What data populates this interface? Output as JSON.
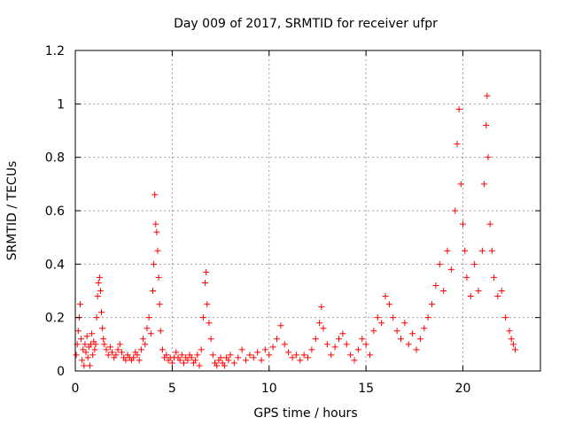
{
  "chart_data": {
    "type": "scatter",
    "title": "Day 009 of 2017, SRMTID for receiver ufpr",
    "xlabel": "GPS time / hours",
    "ylabel": "SRMTID / TECUs",
    "xlim": [
      0,
      24
    ],
    "ylim": [
      0,
      1.2
    ],
    "xticks": [
      0,
      5,
      10,
      15,
      20
    ],
    "yticks": [
      0,
      0.2,
      0.4,
      0.6,
      0.8,
      1,
      1.2
    ],
    "xtick_labels": [
      "0",
      "5",
      "10",
      "15",
      "20"
    ],
    "ytick_labels": [
      "0",
      "0.2",
      "0.4",
      "0.6",
      "0.8",
      "1",
      "1.2"
    ],
    "grid": true,
    "marker": "+",
    "color": "#ff0000",
    "series": [
      {
        "name": "SRMTID",
        "points": [
          [
            0.05,
            0.06
          ],
          [
            0.1,
            0.1
          ],
          [
            0.15,
            0.15
          ],
          [
            0.2,
            0.2
          ],
          [
            0.25,
            0.25
          ],
          [
            0.3,
            0.12
          ],
          [
            0.35,
            0.04
          ],
          [
            0.4,
            0.08
          ],
          [
            0.45,
            0.02
          ],
          [
            0.5,
            0.1
          ],
          [
            0.55,
            0.07
          ],
          [
            0.6,
            0.13
          ],
          [
            0.65,
            0.05
          ],
          [
            0.7,
            0.09
          ],
          [
            0.75,
            0.02
          ],
          [
            0.8,
            0.1
          ],
          [
            0.85,
            0.14
          ],
          [
            0.9,
            0.06
          ],
          [
            0.95,
            0.11
          ],
          [
            1.0,
            0.08
          ],
          [
            1.05,
            0.1
          ],
          [
            1.1,
            0.2
          ],
          [
            1.15,
            0.28
          ],
          [
            1.2,
            0.33
          ],
          [
            1.25,
            0.35
          ],
          [
            1.3,
            0.3
          ],
          [
            1.35,
            0.22
          ],
          [
            1.4,
            0.16
          ],
          [
            1.45,
            0.12
          ],
          [
            1.5,
            0.1
          ],
          [
            1.6,
            0.08
          ],
          [
            1.7,
            0.06
          ],
          [
            1.8,
            0.09
          ],
          [
            1.9,
            0.07
          ],
          [
            2.0,
            0.05
          ],
          [
            2.1,
            0.06
          ],
          [
            2.2,
            0.08
          ],
          [
            2.3,
            0.1
          ],
          [
            2.4,
            0.07
          ],
          [
            2.5,
            0.05
          ],
          [
            2.6,
            0.04
          ],
          [
            2.7,
            0.06
          ],
          [
            2.8,
            0.05
          ],
          [
            2.9,
            0.04
          ],
          [
            3.0,
            0.05
          ],
          [
            3.1,
            0.07
          ],
          [
            3.2,
            0.06
          ],
          [
            3.3,
            0.04
          ],
          [
            3.4,
            0.08
          ],
          [
            3.5,
            0.12
          ],
          [
            3.6,
            0.1
          ],
          [
            3.7,
            0.16
          ],
          [
            3.8,
            0.2
          ],
          [
            3.9,
            0.14
          ],
          [
            4.0,
            0.3
          ],
          [
            4.05,
            0.4
          ],
          [
            4.1,
            0.66
          ],
          [
            4.15,
            0.55
          ],
          [
            4.2,
            0.52
          ],
          [
            4.25,
            0.45
          ],
          [
            4.3,
            0.35
          ],
          [
            4.35,
            0.25
          ],
          [
            4.4,
            0.15
          ],
          [
            4.5,
            0.08
          ],
          [
            4.6,
            0.05
          ],
          [
            4.7,
            0.06
          ],
          [
            4.8,
            0.04
          ],
          [
            4.9,
            0.05
          ],
          [
            5.0,
            0.03
          ],
          [
            5.1,
            0.05
          ],
          [
            5.2,
            0.07
          ],
          [
            5.3,
            0.05
          ],
          [
            5.4,
            0.04
          ],
          [
            5.5,
            0.06
          ],
          [
            5.6,
            0.03
          ],
          [
            5.7,
            0.05
          ],
          [
            5.8,
            0.04
          ],
          [
            5.9,
            0.06
          ],
          [
            6.0,
            0.05
          ],
          [
            6.1,
            0.03
          ],
          [
            6.2,
            0.04
          ],
          [
            6.3,
            0.06
          ],
          [
            6.4,
            0.02
          ],
          [
            6.5,
            0.08
          ],
          [
            6.6,
            0.2
          ],
          [
            6.7,
            0.33
          ],
          [
            6.75,
            0.37
          ],
          [
            6.8,
            0.25
          ],
          [
            6.9,
            0.18
          ],
          [
            7.0,
            0.12
          ],
          [
            7.1,
            0.06
          ],
          [
            7.2,
            0.03
          ],
          [
            7.3,
            0.02
          ],
          [
            7.4,
            0.04
          ],
          [
            7.5,
            0.05
          ],
          [
            7.6,
            0.03
          ],
          [
            7.7,
            0.02
          ],
          [
            7.8,
            0.05
          ],
          [
            7.9,
            0.04
          ],
          [
            8.0,
            0.06
          ],
          [
            8.2,
            0.03
          ],
          [
            8.4,
            0.05
          ],
          [
            8.6,
            0.08
          ],
          [
            8.8,
            0.04
          ],
          [
            9.0,
            0.06
          ],
          [
            9.2,
            0.05
          ],
          [
            9.4,
            0.07
          ],
          [
            9.6,
            0.04
          ],
          [
            9.8,
            0.08
          ],
          [
            10.0,
            0.06
          ],
          [
            10.2,
            0.09
          ],
          [
            10.4,
            0.12
          ],
          [
            10.6,
            0.17
          ],
          [
            10.8,
            0.1
          ],
          [
            11.0,
            0.07
          ],
          [
            11.2,
            0.05
          ],
          [
            11.4,
            0.06
          ],
          [
            11.6,
            0.04
          ],
          [
            11.8,
            0.06
          ],
          [
            12.0,
            0.05
          ],
          [
            12.2,
            0.08
          ],
          [
            12.4,
            0.12
          ],
          [
            12.6,
            0.18
          ],
          [
            12.7,
            0.24
          ],
          [
            12.8,
            0.16
          ],
          [
            13.0,
            0.1
          ],
          [
            13.2,
            0.06
          ],
          [
            13.4,
            0.09
          ],
          [
            13.6,
            0.12
          ],
          [
            13.8,
            0.14
          ],
          [
            14.0,
            0.1
          ],
          [
            14.2,
            0.06
          ],
          [
            14.4,
            0.04
          ],
          [
            14.6,
            0.08
          ],
          [
            14.8,
            0.12
          ],
          [
            15.0,
            0.1
          ],
          [
            15.2,
            0.06
          ],
          [
            15.4,
            0.15
          ],
          [
            15.6,
            0.2
          ],
          [
            15.8,
            0.18
          ],
          [
            16.0,
            0.28
          ],
          [
            16.2,
            0.25
          ],
          [
            16.4,
            0.2
          ],
          [
            16.6,
            0.15
          ],
          [
            16.8,
            0.12
          ],
          [
            17.0,
            0.18
          ],
          [
            17.2,
            0.1
          ],
          [
            17.4,
            0.14
          ],
          [
            17.6,
            0.08
          ],
          [
            17.8,
            0.12
          ],
          [
            18.0,
            0.16
          ],
          [
            18.2,
            0.2
          ],
          [
            18.4,
            0.25
          ],
          [
            18.6,
            0.32
          ],
          [
            18.8,
            0.4
          ],
          [
            19.0,
            0.3
          ],
          [
            19.2,
            0.45
          ],
          [
            19.4,
            0.38
          ],
          [
            19.6,
            0.6
          ],
          [
            19.7,
            0.85
          ],
          [
            19.8,
            0.98
          ],
          [
            19.9,
            0.7
          ],
          [
            20.0,
            0.55
          ],
          [
            20.1,
            0.45
          ],
          [
            20.2,
            0.35
          ],
          [
            20.4,
            0.28
          ],
          [
            20.6,
            0.4
          ],
          [
            20.8,
            0.3
          ],
          [
            21.0,
            0.45
          ],
          [
            21.1,
            0.7
          ],
          [
            21.2,
            0.92
          ],
          [
            21.25,
            1.03
          ],
          [
            21.3,
            0.8
          ],
          [
            21.4,
            0.55
          ],
          [
            21.5,
            0.45
          ],
          [
            21.6,
            0.35
          ],
          [
            21.8,
            0.28
          ],
          [
            22.0,
            0.3
          ],
          [
            22.2,
            0.2
          ],
          [
            22.4,
            0.15
          ],
          [
            22.5,
            0.12
          ],
          [
            22.6,
            0.1
          ],
          [
            22.7,
            0.08
          ]
        ]
      }
    ]
  }
}
